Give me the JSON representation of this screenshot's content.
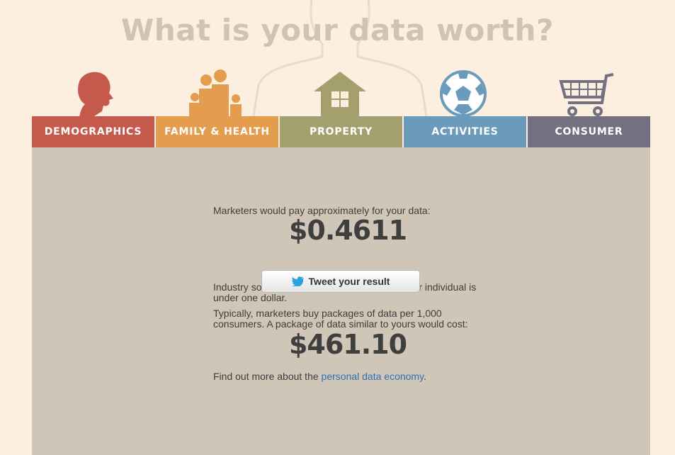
{
  "header": {
    "title": "What is your data worth?"
  },
  "tabs": [
    {
      "label": "DEMOGRAPHICS",
      "color": "#c5594b"
    },
    {
      "label": "FAMILY & HEALTH",
      "color": "#e49c4f"
    },
    {
      "label": "PROPERTY",
      "color": "#a4a06e"
    },
    {
      "label": "ACTIVITIES",
      "color": "#6b9bbb"
    },
    {
      "label": "CONSUMER",
      "color": "#737082"
    }
  ],
  "icons": [
    "head-icon",
    "family-icon",
    "house-icon",
    "soccer-ball-icon",
    "shopping-cart-icon"
  ],
  "result": {
    "intro": "Marketers would pay approximately for your data:",
    "value": "$0.4611",
    "tweet_label": "Tweet your result",
    "industry_text": "Industry sources suggest the average value per individual is under one dollar.",
    "package_text": "Typically, marketers buy packages of data per 1,000 consumers. A package of data similar to yours would cost:",
    "package_value": "$461.10",
    "more_prefix": "Find out more about the ",
    "more_link": "personal data economy",
    "more_suffix": "."
  }
}
